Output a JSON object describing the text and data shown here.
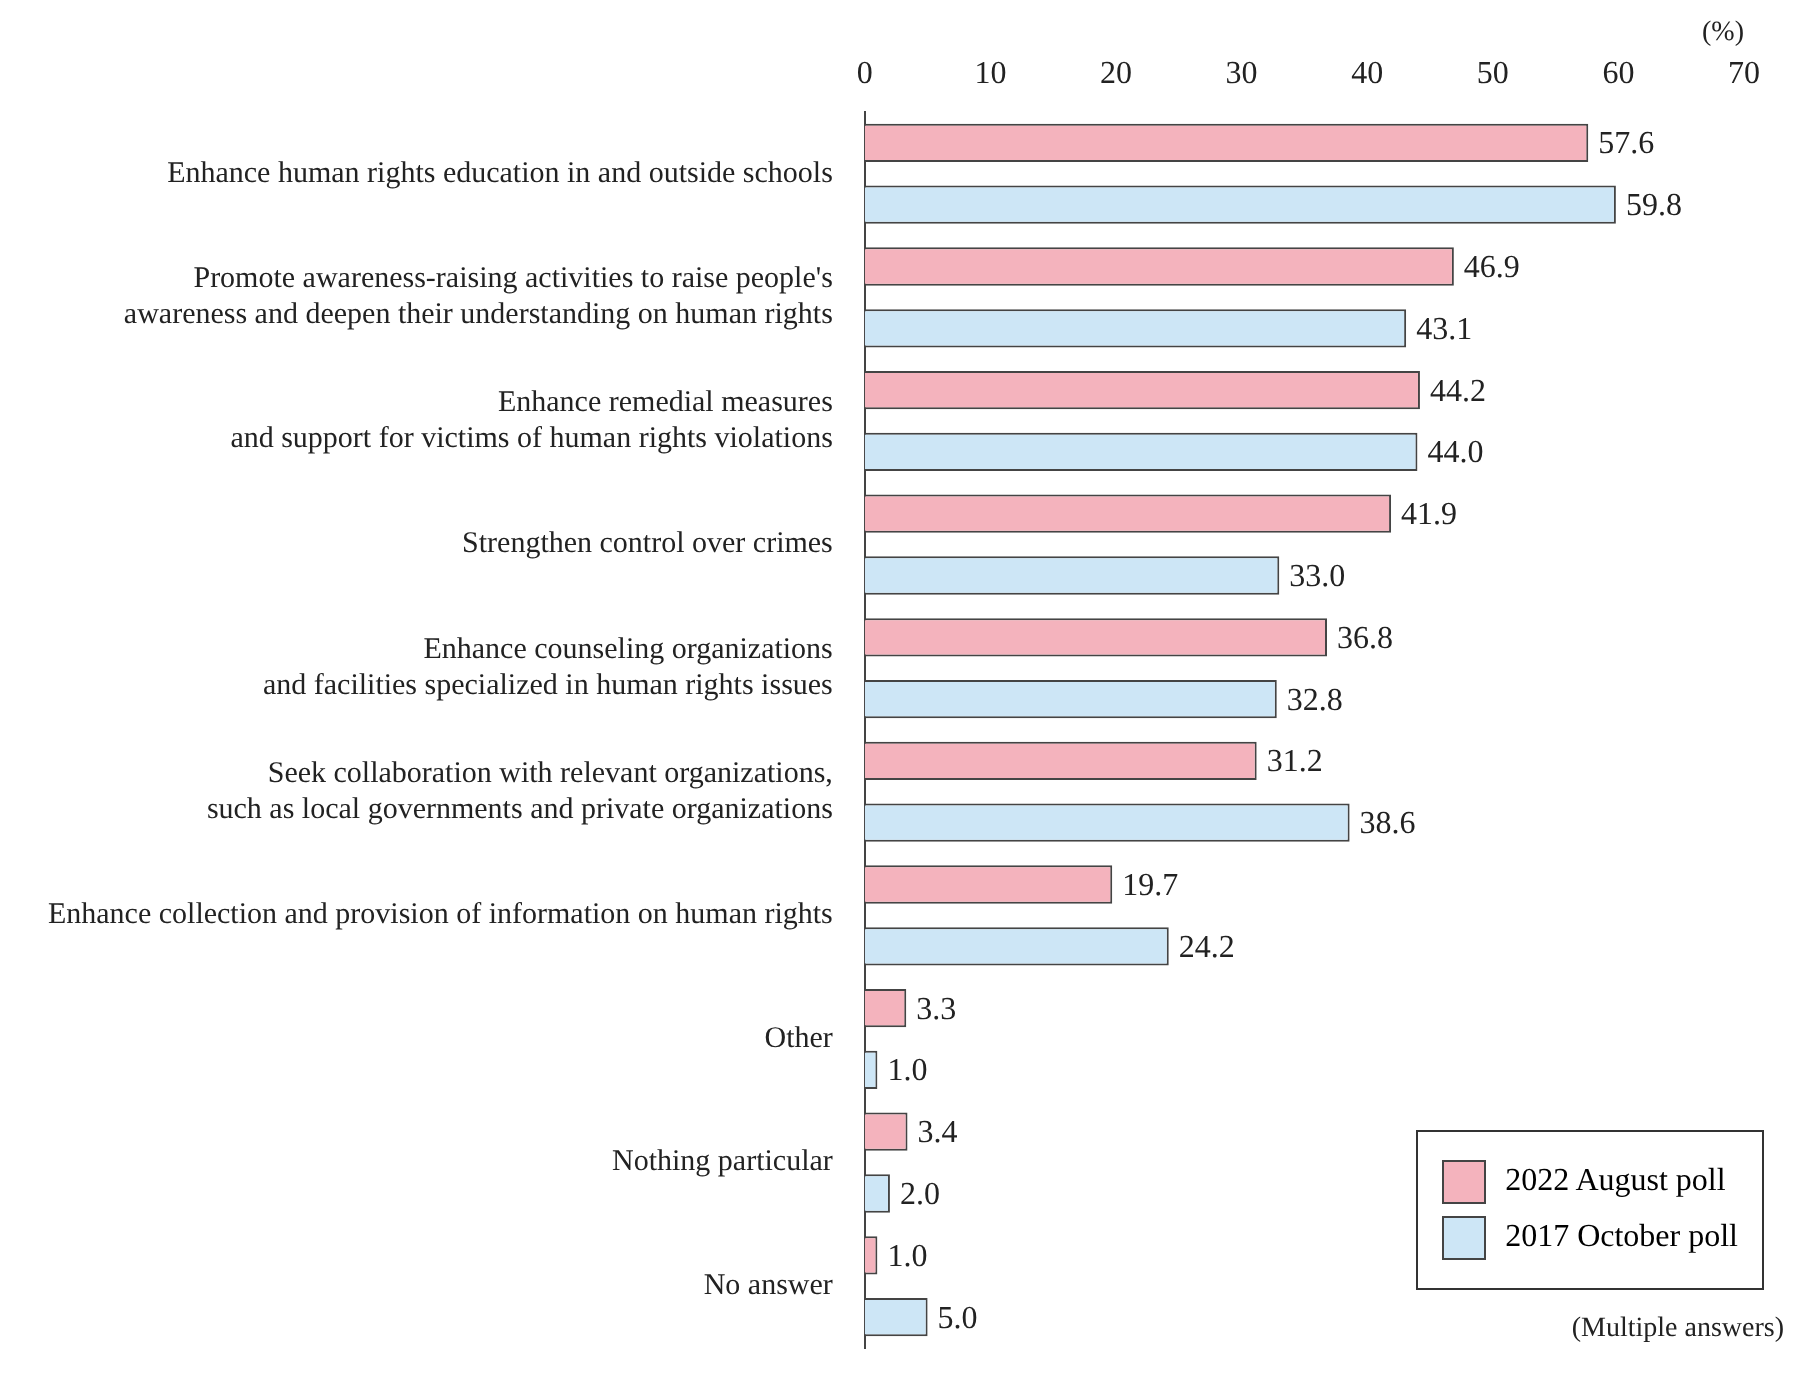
{
  "chart_data": {
    "type": "bar",
    "orientation": "horizontal",
    "xlabel": "(%)",
    "categories": [
      "Enhance human rights education in and outside schools",
      "Promote awareness-raising activities to raise people's\nawareness and deepen their understanding on human rights",
      "Enhance remedial measures\nand support for victims of human rights violations",
      "Strengthen control over crimes",
      "Enhance counseling organizations\nand facilities specialized in human rights issues",
      "Seek collaboration with relevant organizations,\nsuch as local governments and private organizations",
      "Enhance collection and provision of information on human rights",
      "Other",
      "Nothing particular",
      "No answer"
    ],
    "series": [
      {
        "name": "2022 August poll",
        "color": "#f4b3bd",
        "values": [
          57.6,
          46.9,
          44.2,
          41.9,
          36.8,
          31.2,
          19.7,
          3.3,
          3.4,
          1.0
        ],
        "value_labels": [
          "57.6",
          "46.9",
          "44.2",
          "41.9",
          "36.8",
          "31.2",
          "19.7",
          "3.3",
          "3.4",
          "1.0"
        ]
      },
      {
        "name": "2017 October poll",
        "color": "#cde6f6",
        "values": [
          59.8,
          43.1,
          44.0,
          33.0,
          32.8,
          38.6,
          24.2,
          1.0,
          2.0,
          5.0
        ],
        "value_labels": [
          "59.8",
          "43.1",
          "44.0",
          "33.0",
          "32.8",
          "38.6",
          "24.2",
          "1.0",
          "2.0",
          "5.0"
        ]
      }
    ],
    "xlim": [
      0,
      70
    ],
    "xticks": [
      0,
      10,
      20,
      30,
      40,
      50,
      60,
      70
    ],
    "grid": false,
    "legend": "bottom right",
    "annotations": [
      "(Multiple answers)"
    ]
  }
}
